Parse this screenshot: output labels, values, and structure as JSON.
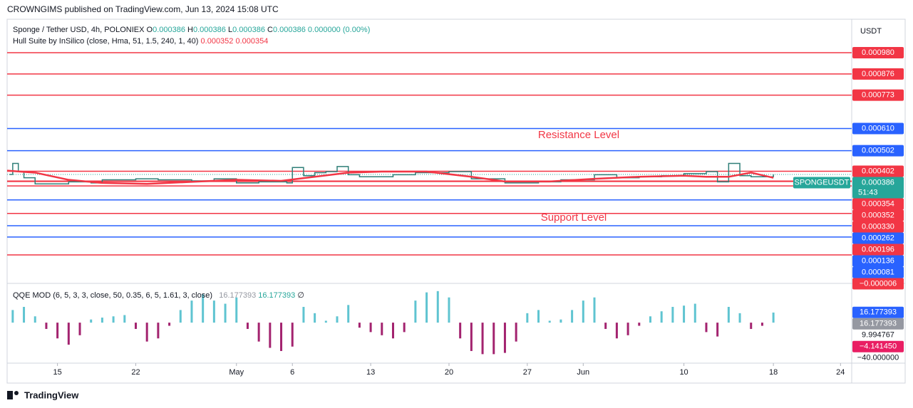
{
  "header": {
    "publisher": "CROWNGIMS published on TradingView.com, Jun 13, 2024 15:08 UTC"
  },
  "footer": {
    "brand": "TradingView"
  },
  "chart_data": [
    {
      "type": "line",
      "title": "Sponge / Tether USD, 4h, POLONIEX",
      "ohlc": [
        {
          "label": "O",
          "value": "0.000386"
        },
        {
          "label": "H",
          "value": "0.000386"
        },
        {
          "label": "L",
          "value": "0.000386"
        },
        {
          "label": "C",
          "value": "0.000386"
        }
      ],
      "change": "0.000000 (0.00%)",
      "currency": "USDT",
      "symbol_tag": "SPONGEUSDT",
      "countdown": "51:43",
      "annotations": [
        "Resistance Level",
        "Support Level"
      ],
      "xlim": [
        -4.5,
        71
      ],
      "xticks": [
        {
          "value": 0,
          "label": "15"
        },
        {
          "value": 7,
          "label": "22"
        },
        {
          "value": 16,
          "label": "May"
        },
        {
          "value": 21,
          "label": "6"
        },
        {
          "value": 28,
          "label": "13"
        },
        {
          "value": 35,
          "label": "20"
        },
        {
          "value": 42,
          "label": "27"
        },
        {
          "value": 47,
          "label": "Jun"
        },
        {
          "value": 56,
          "label": "10"
        },
        {
          "value": 64,
          "label": "18"
        },
        {
          "value": 70,
          "label": "24"
        }
      ],
      "ylim": [
        -0.000145,
        0.001143
      ],
      "series": [
        {
          "color": "#2f7f78",
          "x": [
            -4.3,
            -4,
            -3.5,
            -3,
            -2,
            0,
            1,
            3,
            4,
            7,
            9,
            12,
            14,
            16,
            18,
            20.5,
            21,
            22,
            23,
            24,
            25,
            26,
            27,
            30,
            32,
            35,
            37,
            40,
            43,
            45,
            48,
            50,
            52,
            54,
            56,
            58,
            59,
            60,
            61,
            62,
            64
          ],
          "values": [
            0.000386,
            0.00044,
            0.0004,
            0.00037,
            0.00034,
            0.00034,
            0.00035,
            0.000345,
            0.00036,
            0.000365,
            0.00036,
            0.000355,
            0.000365,
            0.000345,
            0.00035,
            0.000345,
            0.00042,
            0.00038,
            0.000395,
            0.0004,
            0.000425,
            0.000385,
            0.000375,
            0.000385,
            0.000395,
            0.0004,
            0.000365,
            0.000345,
            0.00035,
            0.00036,
            0.000385,
            0.00037,
            0.000375,
            0.00038,
            0.00039,
            0.0004,
            0.00035,
            0.00044,
            0.00038,
            0.000375,
            0.000386
          ]
        }
      ],
      "hull": {
        "name": "Hull Suite by InSilico (close, Hma, 51, 1.5, 240, 1, 40)",
        "legend_values": [
          "0.000352",
          "0.000354"
        ],
        "color": "#f23645",
        "x": [
          -4.5,
          -2,
          1,
          4,
          8,
          12,
          16,
          20,
          23,
          26,
          29,
          33,
          37,
          40,
          44,
          48,
          52,
          56,
          58,
          60,
          62,
          64
        ],
        "values": [
          0.000405,
          0.000395,
          0.00036,
          0.000345,
          0.00034,
          0.00035,
          0.00036,
          0.000355,
          0.000375,
          0.000395,
          0.0004,
          0.0004,
          0.000375,
          0.000352,
          0.000352,
          0.000365,
          0.000375,
          0.00038,
          0.000375,
          0.000375,
          0.000395,
          0.00037
        ]
      },
      "last_price": {
        "value": 0.000386,
        "color": "#26a69a"
      },
      "levels": [
        {
          "value": 0.00098,
          "label": "0.000980",
          "color": "#f23645"
        },
        {
          "value": 0.000876,
          "label": "0.000876",
          "color": "#f23645"
        },
        {
          "value": 0.000773,
          "label": "0.000773",
          "color": "#f23645"
        },
        {
          "value": 0.00061,
          "label": "0.000610",
          "color": "#2962ff"
        },
        {
          "value": 0.000502,
          "color": "#2962ff"
        },
        {
          "value": 0.000402,
          "color": "#f23645"
        },
        {
          "value": 0.000354,
          "color": "#f23645"
        },
        {
          "value": 0.000352,
          "color": "#f23645"
        },
        {
          "value": 0.00033,
          "label": "0.000330",
          "color": "#f23645"
        },
        {
          "value": 0.000262,
          "color": "#2962ff"
        },
        {
          "value": 0.000196,
          "color": "#f23645"
        },
        {
          "value": 0.000136,
          "color": "#2962ff"
        },
        {
          "value": 8.1e-05,
          "label": "0.000081",
          "color": "#2962ff"
        },
        {
          "value": -6e-06,
          "label": "−0.000006",
          "color": "#f23645"
        }
      ]
    },
    {
      "type": "bar",
      "title": "QQE MOD (6, 5, 3, 3, close, 50, 0.35, 6, 5, 1.61, 3, close)",
      "legend_values": [
        "16.177393",
        "16.177393"
      ],
      "status_icon": "∅",
      "ylim": [
        -62,
        60
      ],
      "colors": {
        "positive": "#5fc4d1",
        "negative": "#a3236f"
      },
      "x": [
        -4,
        -3,
        -2,
        -1,
        0,
        1,
        2,
        3,
        4,
        5,
        6,
        7,
        8,
        9,
        10,
        11,
        12,
        13,
        14,
        15,
        16,
        17,
        18,
        19,
        20,
        21,
        22,
        23,
        24,
        25,
        26,
        27,
        28,
        29,
        30,
        31,
        32,
        33,
        34,
        35,
        36,
        37,
        38,
        39,
        40,
        41,
        42,
        43,
        44,
        45,
        46,
        47,
        48,
        49,
        50,
        51,
        52,
        53,
        54,
        55,
        56,
        57,
        58,
        59,
        60,
        61,
        62,
        63,
        64
      ],
      "values": [
        20,
        25,
        10,
        -10,
        -25,
        -35,
        -20,
        5,
        8,
        10,
        12,
        -10,
        -30,
        -25,
        -5,
        20,
        35,
        45,
        35,
        30,
        40,
        -10,
        -30,
        -40,
        -45,
        -38,
        25,
        15,
        3,
        10,
        28,
        -8,
        -15,
        -20,
        -25,
        -15,
        35,
        48,
        50,
        40,
        -25,
        -45,
        -50,
        -50,
        -48,
        -30,
        15,
        20,
        3,
        5,
        20,
        35,
        40,
        -10,
        -25,
        -20,
        -5,
        10,
        18,
        25,
        27,
        30,
        -15,
        -22,
        25,
        15,
        -10,
        -5,
        16
      ],
      "axis_labels": [
        {
          "value": 16.177393,
          "bg": "#2962ff"
        },
        {
          "value": 16.177393,
          "bg": "#9598a1"
        },
        {
          "value": 9.994767
        },
        {
          "value": -4.14145,
          "label": "−4.141450",
          "bg": "#e91e63"
        },
        {
          "value": -40,
          "label": "−40.000000"
        }
      ]
    }
  ]
}
